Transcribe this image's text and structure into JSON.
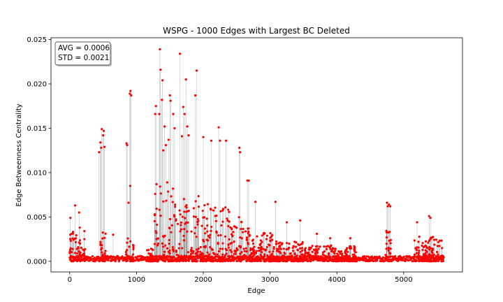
{
  "chart_data": {
    "type": "scatter",
    "title": "WSPG - 1000 Edges with Largest BC Deleted",
    "xlabel": "Edge",
    "ylabel": "Edge Betweenness Centrality",
    "xlim": [
      -280,
      5880
    ],
    "ylim": [
      -0.0012,
      0.0252
    ],
    "xticks": [
      0,
      1000,
      2000,
      3000,
      4000,
      5000
    ],
    "xtick_labels": [
      "0",
      "1000",
      "2000",
      "3000",
      "4000",
      "5000"
    ],
    "yticks": [
      0.0,
      0.005,
      0.01,
      0.015,
      0.02,
      0.025
    ],
    "ytick_labels": [
      "0.000",
      "0.005",
      "0.010",
      "0.015",
      "0.020",
      "0.025"
    ],
    "grid": false,
    "stats_box": {
      "avg": "AVG = 0.0006",
      "std": "STD = 0.0021",
      "placement": "top-left"
    },
    "marker_color": "#ff0000",
    "stem_color": "#7f7f7f",
    "n_edges": 5600,
    "peaks": [
      {
        "x": 10,
        "y": 0.0049
      },
      {
        "x": 30,
        "y": 0.0031
      },
      {
        "x": 80,
        "y": 0.0063
      },
      {
        "x": 140,
        "y": 0.0055
      },
      {
        "x": 150,
        "y": 0.0038
      },
      {
        "x": 220,
        "y": 0.0034
      },
      {
        "x": 440,
        "y": 0.0123
      },
      {
        "x": 460,
        "y": 0.0134
      },
      {
        "x": 470,
        "y": 0.0128
      },
      {
        "x": 480,
        "y": 0.0149
      },
      {
        "x": 500,
        "y": 0.0142
      },
      {
        "x": 510,
        "y": 0.0147
      },
      {
        "x": 520,
        "y": 0.0129
      },
      {
        "x": 650,
        "y": 0.003
      },
      {
        "x": 850,
        "y": 0.0133
      },
      {
        "x": 860,
        "y": 0.0131
      },
      {
        "x": 880,
        "y": 0.0066
      },
      {
        "x": 900,
        "y": 0.0189
      },
      {
        "x": 910,
        "y": 0.0192
      },
      {
        "x": 920,
        "y": 0.0187
      },
      {
        "x": 905,
        "y": 0.0085
      },
      {
        "x": 1280,
        "y": 0.0166
      },
      {
        "x": 1290,
        "y": 0.0175
      },
      {
        "x": 1300,
        "y": 0.0087
      },
      {
        "x": 1340,
        "y": 0.0166
      },
      {
        "x": 1350,
        "y": 0.0239
      },
      {
        "x": 1360,
        "y": 0.0216
      },
      {
        "x": 1380,
        "y": 0.0182
      },
      {
        "x": 1390,
        "y": 0.0204
      },
      {
        "x": 1400,
        "y": 0.0125
      },
      {
        "x": 1420,
        "y": 0.0152
      },
      {
        "x": 1440,
        "y": 0.0131
      },
      {
        "x": 1460,
        "y": 0.0089
      },
      {
        "x": 1480,
        "y": 0.0137
      },
      {
        "x": 1500,
        "y": 0.0187
      },
      {
        "x": 1510,
        "y": 0.0181
      },
      {
        "x": 1550,
        "y": 0.0166
      },
      {
        "x": 1570,
        "y": 0.015
      },
      {
        "x": 1650,
        "y": 0.0234
      },
      {
        "x": 1680,
        "y": 0.0141
      },
      {
        "x": 1700,
        "y": 0.0174
      },
      {
        "x": 1720,
        "y": 0.0166
      },
      {
        "x": 1740,
        "y": 0.0205
      },
      {
        "x": 1760,
        "y": 0.0152
      },
      {
        "x": 1780,
        "y": 0.0142
      },
      {
        "x": 1880,
        "y": 0.0187
      },
      {
        "x": 1900,
        "y": 0.0215
      },
      {
        "x": 2000,
        "y": 0.014
      },
      {
        "x": 2120,
        "y": 0.0136
      },
      {
        "x": 2230,
        "y": 0.0151
      },
      {
        "x": 2250,
        "y": 0.0136
      },
      {
        "x": 2340,
        "y": 0.0136
      },
      {
        "x": 2540,
        "y": 0.0128
      },
      {
        "x": 2550,
        "y": 0.0123
      },
      {
        "x": 2660,
        "y": 0.0091
      },
      {
        "x": 2680,
        "y": 0.0091
      },
      {
        "x": 2780,
        "y": 0.0067
      },
      {
        "x": 3080,
        "y": 0.0067
      },
      {
        "x": 3250,
        "y": 0.0044
      },
      {
        "x": 3450,
        "y": 0.0046
      },
      {
        "x": 3700,
        "y": 0.0031
      },
      {
        "x": 3900,
        "y": 0.0026
      },
      {
        "x": 4200,
        "y": 0.0026
      },
      {
        "x": 4750,
        "y": 0.0066
      },
      {
        "x": 4760,
        "y": 0.0062
      },
      {
        "x": 4780,
        "y": 0.0064
      },
      {
        "x": 4800,
        "y": 0.0062
      },
      {
        "x": 5200,
        "y": 0.0044
      },
      {
        "x": 5380,
        "y": 0.0051
      },
      {
        "x": 5400,
        "y": 0.0049
      }
    ],
    "clusters": [
      {
        "x_from": 0,
        "x_to": 240,
        "max": 0.0035
      },
      {
        "x_from": 430,
        "x_to": 540,
        "max": 0.0035
      },
      {
        "x_from": 840,
        "x_to": 960,
        "max": 0.0028
      },
      {
        "x_from": 1150,
        "x_to": 1260,
        "max": 0.0015
      },
      {
        "x_from": 1260,
        "x_to": 1600,
        "max": 0.0085
      },
      {
        "x_from": 1600,
        "x_to": 2000,
        "max": 0.0075
      },
      {
        "x_from": 2000,
        "x_to": 2400,
        "max": 0.0065
      },
      {
        "x_from": 2400,
        "x_to": 2700,
        "max": 0.005
      },
      {
        "x_from": 2700,
        "x_to": 3100,
        "max": 0.0032
      },
      {
        "x_from": 3100,
        "x_to": 3500,
        "max": 0.0022
      },
      {
        "x_from": 3500,
        "x_to": 4300,
        "max": 0.0018
      },
      {
        "x_from": 4720,
        "x_to": 4820,
        "max": 0.0035
      },
      {
        "x_from": 5150,
        "x_to": 5600,
        "max": 0.0028
      }
    ]
  }
}
